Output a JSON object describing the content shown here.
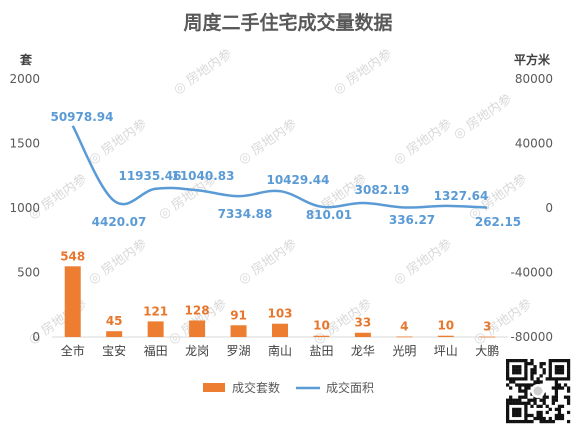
{
  "chart_data": {
    "type": "bar+line",
    "title": "周度二手住宅成交量数据",
    "left_axis_unit": "套",
    "right_axis_unit": "平方米",
    "left_ticks": [
      "0",
      "500",
      "1000",
      "1500",
      "2000"
    ],
    "right_ticks": [
      "-80000",
      "-40000",
      "0",
      "40000",
      "80000"
    ],
    "left_ylim": [
      0,
      2000
    ],
    "right_ylim": [
      -80000,
      80000
    ],
    "categories": [
      "全市",
      "宝安",
      "福田",
      "龙岗",
      "罗湖",
      "南山",
      "盐田",
      "龙华",
      "光明",
      "坪山",
      "大鹏"
    ],
    "series": [
      {
        "name": "成交套数",
        "axis": "left",
        "kind": "bar",
        "color": "#ed7d31",
        "values": [
          548,
          45,
          121,
          128,
          91,
          103,
          10,
          33,
          4,
          10,
          3
        ],
        "labels": [
          "548",
          "45",
          "121",
          "128",
          "91",
          "103",
          "10",
          "33",
          "4",
          "10",
          "3"
        ]
      },
      {
        "name": "成交面积",
        "axis": "right",
        "kind": "line",
        "color": "#5b9bd5",
        "values": [
          50978.94,
          4420.07,
          11935.46,
          11040.83,
          7334.88,
          10429.44,
          810.01,
          3082.19,
          336.27,
          1327.64,
          262.15
        ],
        "labels": [
          "50978.94",
          "4420.07",
          "11935.46",
          "11040.83",
          "7334.88",
          "10429.44",
          "810.01",
          "3082.19",
          "336.27",
          "1327.64",
          "262.15"
        ]
      }
    ],
    "legend": {
      "position": "bottom",
      "items": [
        "成交套数",
        "成交面积"
      ]
    },
    "grid": false
  },
  "watermark": "房地内参"
}
